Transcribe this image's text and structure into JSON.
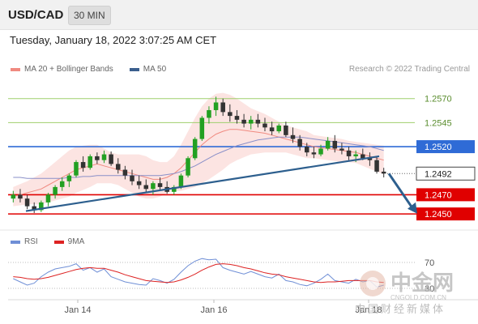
{
  "header": {
    "symbol": "USD/CAD",
    "timeframe": "30 MIN",
    "datetime": "Tuesday, January 18, 2022 3:07:25 AM CET"
  },
  "legend": {
    "ma20_label": "MA 20 + Bollinger Bands",
    "ma20_color": "#f08a80",
    "ma50_label": "MA 50",
    "ma50_color": "#3b5f8e",
    "credit": "Research © 2022 Trading Central"
  },
  "rsi_legend": {
    "rsi_label": "RSI",
    "rsi_color": "#6f8fd6",
    "ma_label": "9MA",
    "ma_color": "#dd2222"
  },
  "watermark": {
    "brand": "中金网",
    "domain": "CNGOLD.COM.CN",
    "tagline": "中国财经新媒体"
  },
  "chart_data": {
    "type": "candlestick",
    "y_range": [
      1.244,
      1.259
    ],
    "levels": [
      {
        "value": 1.257,
        "label": "1.2570",
        "style": "green-line"
      },
      {
        "value": 1.2545,
        "label": "1.2545",
        "style": "green-line"
      },
      {
        "value": 1.252,
        "label": "1.2520",
        "style": "blue-line-filled-tag"
      },
      {
        "value": 1.2492,
        "label": "1.2492",
        "style": "current-price-dotted"
      },
      {
        "value": 1.247,
        "label": "1.2470",
        "style": "red-line-filled-tag"
      },
      {
        "value": 1.245,
        "label": "1.2450",
        "style": "red-line-filled-tag"
      }
    ],
    "x_labels": [
      "Jan 14",
      "Jan 16",
      "Jan 18"
    ],
    "trendline": {
      "from": 1.2453,
      "to": 1.251
    },
    "projection": {
      "from": 1.2492,
      "to": 1.2452
    },
    "candles": [
      [
        1.2466,
        1.2474,
        1.2462,
        1.247
      ],
      [
        1.247,
        1.2476,
        1.2462,
        1.2466
      ],
      [
        1.2466,
        1.247,
        1.2455,
        1.2458
      ],
      [
        1.2458,
        1.2462,
        1.2451,
        1.2454
      ],
      [
        1.2454,
        1.2464,
        1.2452,
        1.2462
      ],
      [
        1.2462,
        1.2472,
        1.2458,
        1.247
      ],
      [
        1.247,
        1.248,
        1.2466,
        1.2478
      ],
      [
        1.2478,
        1.2488,
        1.2474,
        1.2484
      ],
      [
        1.2484,
        1.2492,
        1.2478,
        1.249
      ],
      [
        1.249,
        1.2506,
        1.2488,
        1.2504
      ],
      [
        1.2504,
        1.251,
        1.2494,
        1.2498
      ],
      [
        1.2498,
        1.2512,
        1.2496,
        1.251
      ],
      [
        1.251,
        1.2514,
        1.2502,
        1.2506
      ],
      [
        1.2506,
        1.2516,
        1.2503,
        1.2512
      ],
      [
        1.2512,
        1.2515,
        1.25,
        1.2502
      ],
      [
        1.2502,
        1.2508,
        1.2492,
        1.2496
      ],
      [
        1.2496,
        1.25,
        1.2486,
        1.249
      ],
      [
        1.249,
        1.2496,
        1.248,
        1.2484
      ],
      [
        1.2484,
        1.249,
        1.2476,
        1.248
      ],
      [
        1.248,
        1.2486,
        1.2472,
        1.2476
      ],
      [
        1.2476,
        1.2484,
        1.247,
        1.2482
      ],
      [
        1.2482,
        1.2488,
        1.2474,
        1.2478
      ],
      [
        1.2478,
        1.2484,
        1.2471,
        1.2473
      ],
      [
        1.2473,
        1.248,
        1.247,
        1.2478
      ],
      [
        1.2478,
        1.2492,
        1.2476,
        1.249
      ],
      [
        1.249,
        1.251,
        1.2488,
        1.2508
      ],
      [
        1.2508,
        1.253,
        1.2506,
        1.2528
      ],
      [
        1.2528,
        1.2552,
        1.2526,
        1.255
      ],
      [
        1.255,
        1.2562,
        1.2544,
        1.2558
      ],
      [
        1.2558,
        1.2572,
        1.2552,
        1.2566
      ],
      [
        1.2566,
        1.257,
        1.2552,
        1.2556
      ],
      [
        1.2556,
        1.2564,
        1.2546,
        1.2552
      ],
      [
        1.2552,
        1.2558,
        1.2544,
        1.2548
      ],
      [
        1.2548,
        1.2554,
        1.254,
        1.2544
      ],
      [
        1.2544,
        1.2552,
        1.2538,
        1.2548
      ],
      [
        1.2548,
        1.2554,
        1.254,
        1.2544
      ],
      [
        1.2544,
        1.255,
        1.2536,
        1.254
      ],
      [
        1.254,
        1.2546,
        1.2532,
        1.2536
      ],
      [
        1.2536,
        1.2544,
        1.2534,
        1.2542
      ],
      [
        1.2542,
        1.2546,
        1.253,
        1.2532
      ],
      [
        1.2532,
        1.254,
        1.2524,
        1.2528
      ],
      [
        1.2528,
        1.2532,
        1.2516,
        1.252
      ],
      [
        1.252,
        1.2524,
        1.251,
        1.2514
      ],
      [
        1.2514,
        1.252,
        1.2508,
        1.2512
      ],
      [
        1.2512,
        1.2522,
        1.251,
        1.2518
      ],
      [
        1.2518,
        1.253,
        1.2516,
        1.2526
      ],
      [
        1.2526,
        1.2532,
        1.2514,
        1.2518
      ],
      [
        1.2518,
        1.2524,
        1.2512,
        1.2516
      ],
      [
        1.2516,
        1.252,
        1.2506,
        1.251
      ],
      [
        1.251,
        1.2516,
        1.2504,
        1.2512
      ],
      [
        1.2512,
        1.2518,
        1.2506,
        1.2508
      ],
      [
        1.2508,
        1.2514,
        1.25,
        1.2506
      ],
      [
        1.2506,
        1.251,
        1.2492,
        1.2494
      ],
      [
        1.2494,
        1.2498,
        1.2488,
        1.2492
      ]
    ],
    "ma20": [
      1.2468,
      1.247,
      1.2472,
      1.2474,
      1.2476,
      1.248,
      1.2484,
      1.2488,
      1.2492,
      1.2496,
      1.2498,
      1.25,
      1.2502,
      1.25,
      1.2498,
      1.2496,
      1.2494,
      1.2492,
      1.249,
      1.2488,
      1.2486,
      1.2486,
      1.2488,
      1.2492,
      1.2498,
      1.2506,
      1.2514,
      1.2522,
      1.2528,
      1.2533,
      1.2536,
      1.2538,
      1.2538,
      1.2537,
      1.2536,
      1.2535,
      1.2534,
      1.2532,
      1.253,
      1.2528,
      1.2526,
      1.2524,
      1.2522,
      1.252,
      1.2519,
      1.2518,
      1.2517,
      1.2516,
      1.2515,
      1.2514,
      1.2512,
      1.251,
      1.2508,
      1.2506
    ],
    "ma50": [
      1.2488,
      1.2488,
      1.2487,
      1.2487,
      1.2487,
      1.2487,
      1.2487,
      1.2487,
      1.2488,
      1.2488,
      1.2489,
      1.2489,
      1.249,
      1.249,
      1.249,
      1.249,
      1.249,
      1.249,
      1.249,
      1.249,
      1.249,
      1.249,
      1.2491,
      1.2492,
      1.2494,
      1.2497,
      1.25,
      1.2504,
      1.2508,
      1.2512,
      1.2515,
      1.2518,
      1.2521,
      1.2523,
      1.2525,
      1.2527,
      1.2528,
      1.2529,
      1.253,
      1.253,
      1.253,
      1.253,
      1.2529,
      1.2528,
      1.2527,
      1.2526,
      1.2525,
      1.2524,
      1.2523,
      1.2522,
      1.2521,
      1.252,
      1.2518,
      1.2516
    ],
    "bb_width": [
      10,
      11,
      12,
      14,
      16,
      18,
      20,
      22,
      24,
      24,
      23,
      22,
      20,
      18,
      16,
      16,
      18,
      20,
      22,
      22,
      20,
      18,
      16,
      18,
      24,
      30,
      36,
      40,
      42,
      42,
      40,
      36,
      32,
      28,
      24,
      22,
      20,
      18,
      16,
      14,
      14,
      14,
      14,
      12,
      12,
      12,
      12,
      12,
      11,
      11,
      12,
      13,
      14,
      15
    ],
    "rsi": {
      "y_range": [
        20,
        85
      ],
      "levels": [
        {
          "value": 70,
          "label": "70"
        },
        {
          "value": 30,
          "label": "30"
        }
      ],
      "rsi": [
        45,
        40,
        35,
        38,
        48,
        55,
        60,
        62,
        64,
        68,
        58,
        62,
        55,
        60,
        48,
        44,
        40,
        38,
        36,
        35,
        45,
        42,
        38,
        44,
        55,
        65,
        72,
        76,
        74,
        75,
        62,
        58,
        55,
        52,
        56,
        52,
        48,
        46,
        52,
        42,
        40,
        36,
        34,
        38,
        44,
        52,
        42,
        40,
        38,
        44,
        40,
        42,
        32,
        35
      ],
      "ma9": [
        48,
        47,
        45,
        44,
        45,
        47,
        50,
        53,
        56,
        59,
        61,
        62,
        61,
        61,
        58,
        55,
        51,
        48,
        45,
        42,
        41,
        40,
        39,
        40,
        43,
        47,
        52,
        58,
        63,
        67,
        68,
        67,
        65,
        62,
        60,
        57,
        54,
        52,
        51,
        48,
        46,
        44,
        42,
        40,
        39,
        40,
        40,
        41,
        42,
        42,
        42,
        42,
        40,
        39
      ]
    }
  }
}
